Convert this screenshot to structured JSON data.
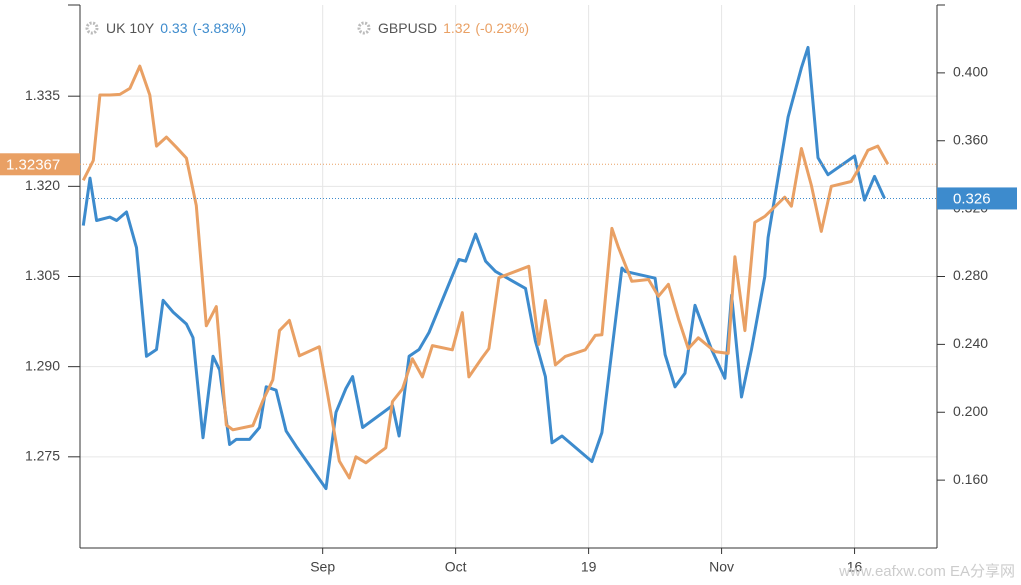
{
  "chart_data": {
    "type": "line",
    "xlim": [
      -0.5,
      128.4
    ],
    "xticks": [
      {
        "value": 36,
        "label": "Sep"
      },
      {
        "value": 56,
        "label": "Oct"
      },
      {
        "value": 76,
        "label": "19"
      },
      {
        "value": 96,
        "label": "Nov"
      },
      {
        "value": 116,
        "label": "16"
      }
    ],
    "ylim": [
      1.25983,
      1.35017
    ],
    "yticks": [
      {
        "value": 1.275,
        "label": "1.275"
      },
      {
        "value": 1.29,
        "label": "1.290"
      },
      {
        "value": 1.305,
        "label": "1.305"
      },
      {
        "value": 1.32,
        "label": "1.320"
      },
      {
        "value": 1.335,
        "label": "1.335"
      }
    ],
    "y2lim": [
      0.12,
      0.44
    ],
    "y2ticks": [
      {
        "value": 0.16,
        "label": "0.160"
      },
      {
        "value": 0.2,
        "label": "0.200"
      },
      {
        "value": 0.24,
        "label": "0.240"
      },
      {
        "value": 0.28,
        "label": "0.280"
      },
      {
        "value": 0.32,
        "label": "0.320"
      },
      {
        "value": 0.36,
        "label": "0.360"
      },
      {
        "value": 0.4,
        "label": "0.400"
      }
    ],
    "grid": true,
    "watermark": "www.eafxw.com  EA分享网",
    "series": [
      {
        "name": "UK 10Y",
        "quote": "0.33",
        "change": "(-3.83%)",
        "color": "#3d8bcd",
        "axis": "y2",
        "current": 0.326,
        "x": [
          0,
          1,
          2,
          4,
          5,
          6.5,
          8,
          9.5,
          11,
          12,
          13.5,
          15.5,
          16.5,
          18,
          19.5,
          20.5,
          22,
          23,
          25,
          26.5,
          27.5,
          29,
          30.5,
          32,
          36.5,
          38,
          39.5,
          40.5,
          42,
          46.5,
          47.5,
          49,
          50.5,
          52,
          56.5,
          57.5,
          59,
          60.5,
          62,
          66.5,
          68,
          69.5,
          70.5,
          72,
          76.5,
          78,
          81,
          81.5,
          86,
          87.5,
          89,
          90.5,
          92,
          94.5,
          96.5,
          97.5,
          99,
          100.5,
          102.5,
          103,
          106,
          108,
          109,
          110.5,
          112,
          116,
          117.5,
          119,
          120.5
        ],
        "values": [
          0.31,
          0.338,
          0.313,
          0.315,
          0.313,
          0.318,
          0.297,
          0.233,
          0.237,
          0.266,
          0.259,
          0.252,
          0.244,
          0.185,
          0.233,
          0.225,
          0.181,
          0.184,
          0.184,
          0.191,
          0.215,
          0.213,
          0.189,
          0.18,
          0.155,
          0.2,
          0.214,
          0.221,
          0.191,
          0.204,
          0.186,
          0.233,
          0.237,
          0.247,
          0.29,
          0.289,
          0.305,
          0.289,
          0.283,
          0.273,
          0.242,
          0.221,
          0.182,
          0.186,
          0.171,
          0.188,
          0.285,
          0.283,
          0.279,
          0.234,
          0.215,
          0.223,
          0.263,
          0.237,
          0.22,
          0.269,
          0.209,
          0.237,
          0.28,
          0.303,
          0.374,
          0.403,
          0.415,
          0.35,
          0.34,
          0.351,
          0.325,
          0.339,
          0.326
        ]
      },
      {
        "name": "GBPUSD",
        "quote": "1.32",
        "change": "(-0.23%)",
        "color": "#e9a064",
        "axis": "y",
        "current": 1.32367,
        "x": [
          0,
          1.5,
          2.5,
          4,
          5.5,
          7,
          8.5,
          10,
          11,
          12.5,
          14,
          15.5,
          17,
          18.5,
          20,
          21.5,
          22.5,
          25.5,
          27,
          28.5,
          29.5,
          31,
          32.5,
          35.5,
          38.5,
          40,
          41,
          42.5,
          45.5,
          46.5,
          48,
          49.5,
          51,
          52.5,
          55.5,
          57,
          58,
          60,
          61,
          62.5,
          67,
          68.5,
          69.5,
          71,
          72.5,
          75.5,
          77,
          78,
          79.5,
          80.5,
          82.5,
          85,
          86.5,
          88,
          89.5,
          91,
          92.5,
          95,
          97,
          98,
          99.5,
          101,
          102.5,
          105.5,
          106.5,
          108,
          109.5,
          111,
          112.5,
          115.5,
          116.5,
          118,
          119.5,
          121
        ],
        "values": [
          1.321,
          1.3243,
          1.3352,
          1.3352,
          1.3353,
          1.3363,
          1.34,
          1.3352,
          1.3267,
          1.3282,
          1.3265,
          1.3247,
          1.3168,
          1.2968,
          1.3,
          1.2803,
          1.2795,
          1.2802,
          1.2843,
          1.2878,
          1.296,
          1.2977,
          1.2918,
          1.2933,
          1.2743,
          1.2715,
          1.275,
          1.274,
          1.2765,
          1.2842,
          1.2863,
          1.2913,
          1.2883,
          1.2935,
          1.2928,
          1.299,
          1.2883,
          1.2915,
          1.293,
          1.3048,
          1.3067,
          1.2937,
          1.301,
          1.2903,
          1.2917,
          1.2928,
          1.2952,
          1.2953,
          1.313,
          1.3098,
          1.3042,
          1.3045,
          1.3017,
          1.3037,
          1.298,
          1.293,
          1.2948,
          1.2925,
          1.2922,
          1.3083,
          1.296,
          1.314,
          1.315,
          1.3182,
          1.3167,
          1.3263,
          1.3202,
          1.3125,
          1.32,
          1.3208,
          1.3227,
          1.326,
          1.3267,
          1.3237
        ]
      }
    ]
  }
}
